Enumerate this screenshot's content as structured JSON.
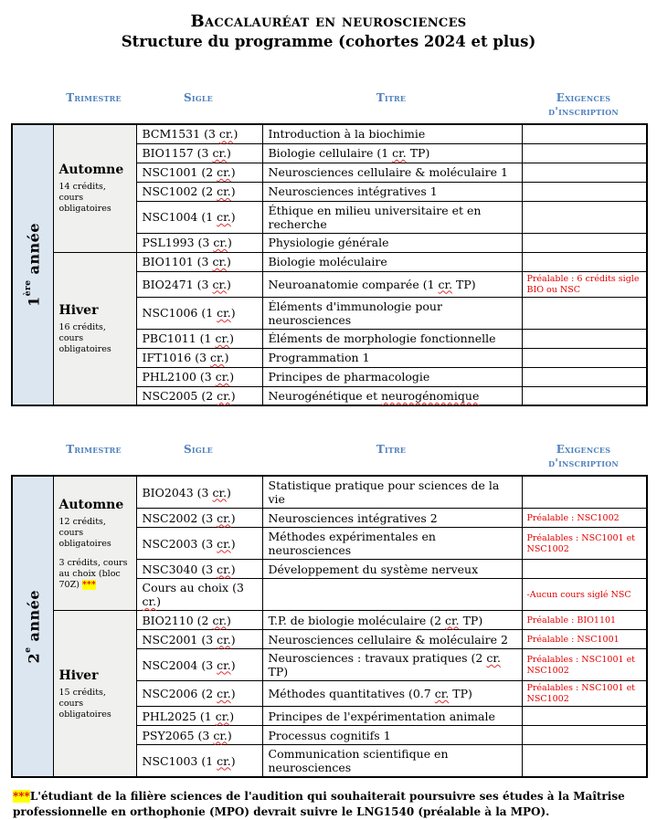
{
  "page_title": "Baccalauréat en neurosciences",
  "subtitle": "Structure du programme (cohortes 2024 et plus)",
  "colors": {
    "header_blue": "#4f81bd",
    "requirement_red": "#e00000",
    "year_cell_blue": "#dce6f1",
    "season_cell_gray": "#f0f0ee",
    "footnote_highlight_yellow": "#ffff00"
  },
  "column_headers": [
    "Trimestre",
    "Sigle",
    "Titre",
    "Exigences d'inscription"
  ],
  "spellcheck_words": [
    "cr.",
    "neurogénomique"
  ],
  "tables": [
    {
      "year": {
        "num": "1",
        "sup": "ère",
        "rest": "année"
      },
      "sections": [
        {
          "season": "Automne",
          "notes": [
            "14 crédits, cours obligatoires"
          ],
          "courses": [
            {
              "sigle": "BCM1531 (3 cr.)",
              "titre": "Introduction à la biochimie",
              "exigence": ""
            },
            {
              "sigle": "BIO1157 (3 cr.)",
              "titre": "Biologie cellulaire (1 cr. TP)",
              "exigence": ""
            },
            {
              "sigle": "NSC1001 (2 cr.)",
              "titre": "Neurosciences cellulaire & moléculaire 1",
              "exigence": ""
            },
            {
              "sigle": "NSC1002 (2 cr.)",
              "titre": "Neurosciences intégratives 1",
              "exigence": ""
            },
            {
              "sigle": "NSC1004 (1 cr.)",
              "titre": "Éthique en milieu universitaire et en recherche",
              "exigence": ""
            },
            {
              "sigle": "PSL1993 (3 cr.)",
              "titre": "Physiologie générale",
              "exigence": ""
            }
          ]
        },
        {
          "season": "Hiver",
          "notes": [
            "16 crédits, cours obligatoires"
          ],
          "courses": [
            {
              "sigle": "BIO1101 (3 cr.)",
              "titre": "Biologie moléculaire",
              "exigence": ""
            },
            {
              "sigle": "BIO2471 (3 cr.)",
              "titre": "Neuroanatomie comparée (1 cr. TP)",
              "exigence": "Préalable : 6 crédits sigle BIO ou NSC"
            },
            {
              "sigle": "NSC1006 (1 cr.)",
              "titre": "Éléments d'immunologie pour neurosciences",
              "exigence": ""
            },
            {
              "sigle": "PBC1011 (1 cr.)",
              "titre": "Éléments de morphologie fonctionnelle",
              "exigence": ""
            },
            {
              "sigle": "IFT1016 (3 cr.)",
              "titre": "Programmation 1",
              "exigence": ""
            },
            {
              "sigle": "PHL2100 (3 cr.)",
              "titre": "Principes de pharmacologie",
              "exigence": ""
            },
            {
              "sigle": "NSC2005 (2 cr.)",
              "titre": "Neurogénétique et neurogénomique",
              "exigence": ""
            }
          ]
        }
      ]
    },
    {
      "year": {
        "num": "2",
        "sup": "e",
        "rest": "année"
      },
      "sections": [
        {
          "season": "Automne",
          "notes": [
            "12 crédits, cours obligatoires",
            "3 crédits, cours au choix (bloc 70Z) ***"
          ],
          "courses": [
            {
              "sigle": "BIO2043 (3 cr.)",
              "titre": "Statistique pratique pour sciences de la vie",
              "exigence": ""
            },
            {
              "sigle": "NSC2002 (3 cr.)",
              "titre": "Neurosciences intégratives 2",
              "exigence": "Préalable : NSC1002"
            },
            {
              "sigle": "NSC2003 (3 cr.)",
              "titre": "Méthodes expérimentales en neurosciences",
              "exigence": "Préalables : NSC1001 et NSC1002"
            },
            {
              "sigle": "NSC3040 (3 cr.)",
              "titre": "Développement du système nerveux",
              "exigence": ""
            },
            {
              "sigle": "Cours au choix (3 cr.)",
              "titre": "",
              "exigence": "-Aucun cours siglé NSC"
            }
          ]
        },
        {
          "season": "Hiver",
          "notes": [
            "15 crédits, cours obligatoires"
          ],
          "courses": [
            {
              "sigle": "BIO2110 (2 cr.)",
              "titre": "T.P. de biologie moléculaire (2 cr. TP)",
              "exigence": "Préalable : BIO1101"
            },
            {
              "sigle": "NSC2001 (3 cr.)",
              "titre": "Neurosciences cellulaire & moléculaire 2",
              "exigence": "Préalable : NSC1001"
            },
            {
              "sigle": "NSC2004 (3 cr.)",
              "titre": "Neurosciences : travaux pratiques (2 cr. TP)",
              "exigence": "Préalables : NSC1001 et NSC1002"
            },
            {
              "sigle": "NSC2006 (2 cr.)",
              "titre": "Méthodes quantitatives (0.7 cr. TP)",
              "exigence": "Préalables : NSC1001 et NSC1002"
            },
            {
              "sigle": "PHL2025 (1 cr.)",
              "titre": "Principes de l'expérimentation animale",
              "exigence": ""
            },
            {
              "sigle": "PSY2065 (3 cr.)",
              "titre": "Processus cognitifs 1",
              "exigence": ""
            },
            {
              "sigle": "NSC1003 (1 cr.)",
              "titre": "Communication scientifique en neurosciences",
              "exigence": ""
            }
          ]
        }
      ]
    }
  ],
  "footnote": {
    "marker": "***",
    "text": "L'étudiant de la filière sciences de l'audition qui souhaiterait poursuivre ses études à la Maîtrise professionnelle en orthophonie (MPO) devrait suivre le LNG1540 (préalable à la MPO)."
  }
}
